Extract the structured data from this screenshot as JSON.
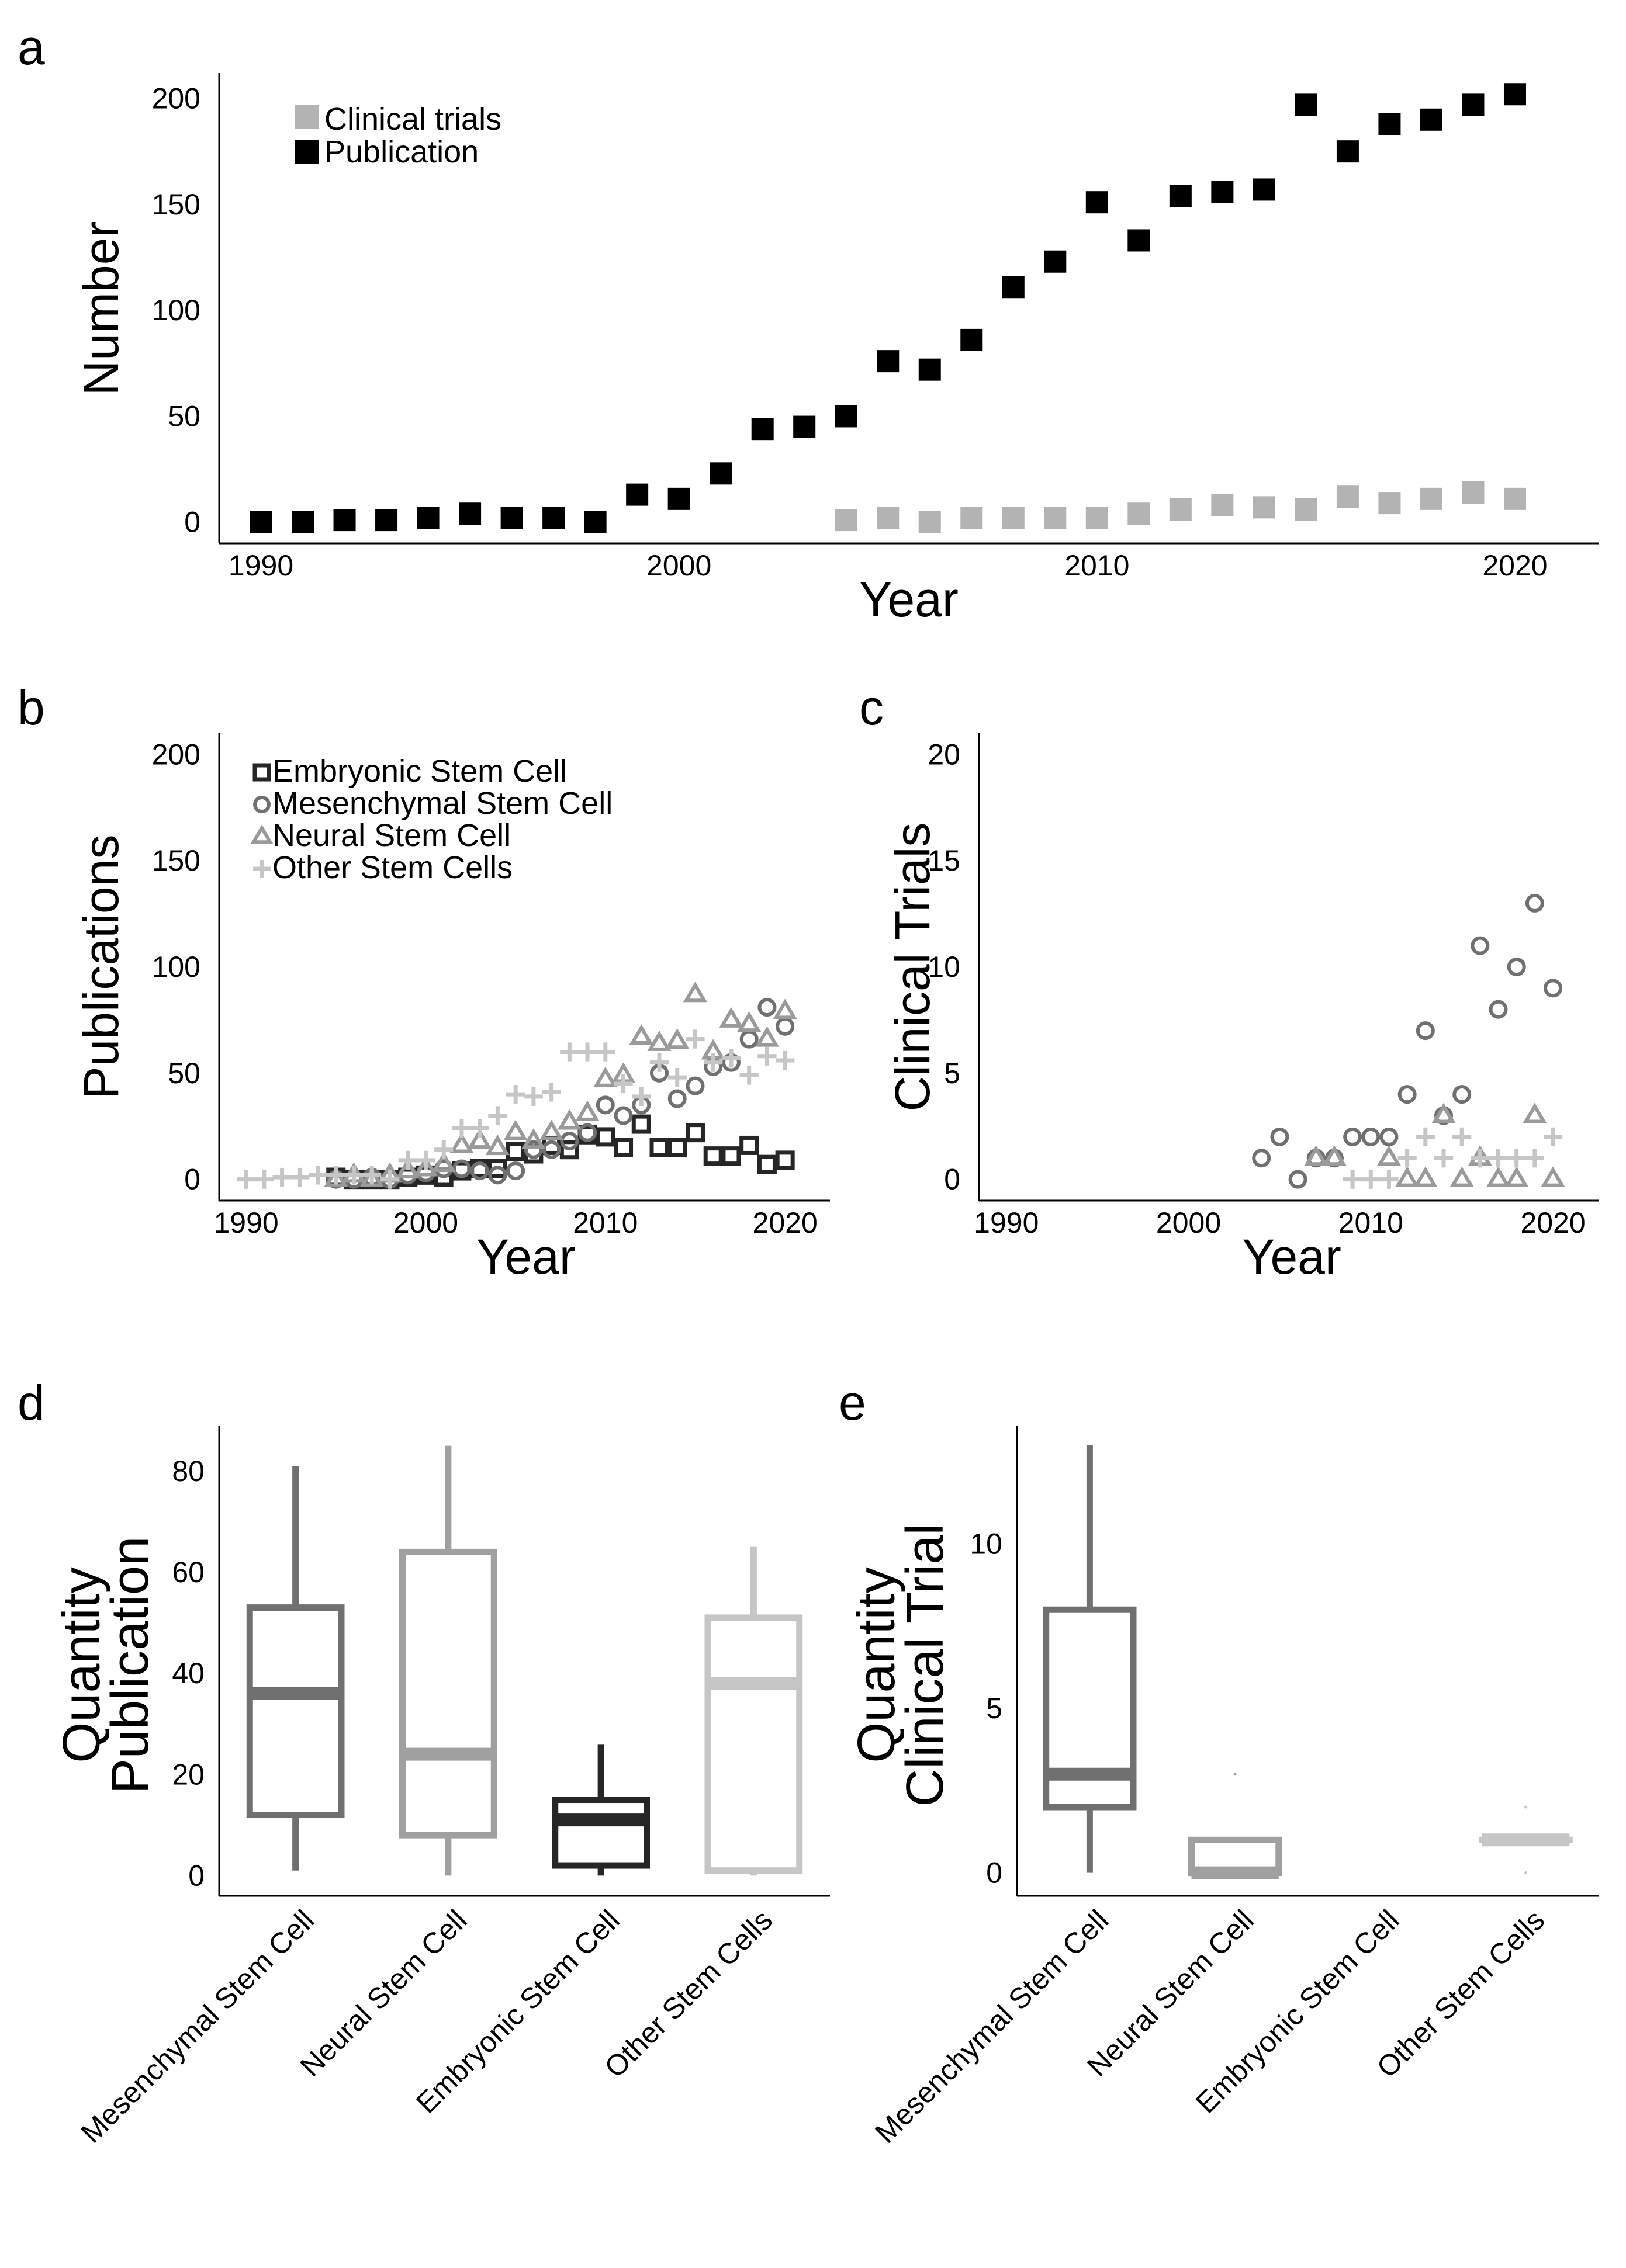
{
  "chart_data": [
    {
      "id": "a",
      "type": "scatter",
      "panel_label": "a",
      "xlabel": "Year",
      "ylabel": "Number",
      "xlim": [
        1989,
        2022
      ],
      "ylim": [
        -10,
        212
      ],
      "x_ticks": [
        1990,
        2000,
        2010,
        2020
      ],
      "y_ticks": [
        0,
        50,
        100,
        150,
        200
      ],
      "legend_position": "top-left",
      "series": [
        {
          "name": "Clinical trials",
          "color": "#b3b3b3",
          "marker": "square",
          "points": [
            [
              2004,
              1
            ],
            [
              2005,
              2
            ],
            [
              2006,
              0
            ],
            [
              2007,
              2
            ],
            [
              2008,
              2
            ],
            [
              2009,
              2
            ],
            [
              2010,
              2
            ],
            [
              2011,
              4
            ],
            [
              2012,
              6
            ],
            [
              2013,
              8
            ],
            [
              2014,
              7
            ],
            [
              2015,
              6
            ],
            [
              2016,
              12
            ],
            [
              2017,
              9
            ],
            [
              2018,
              11
            ],
            [
              2019,
              14
            ],
            [
              2020,
              11
            ]
          ]
        },
        {
          "name": "Publication",
          "color": "#000000",
          "marker": "square",
          "points": [
            [
              1990,
              0
            ],
            [
              1991,
              0
            ],
            [
              1992,
              1
            ],
            [
              1993,
              1
            ],
            [
              1994,
              2
            ],
            [
              1995,
              4
            ],
            [
              1996,
              2
            ],
            [
              1997,
              2
            ],
            [
              1998,
              0
            ],
            [
              1999,
              13
            ],
            [
              2000,
              11
            ],
            [
              2001,
              23
            ],
            [
              2002,
              44
            ],
            [
              2003,
              45
            ],
            [
              2004,
              50
            ],
            [
              2005,
              76
            ],
            [
              2006,
              72
            ],
            [
              2007,
              86
            ],
            [
              2008,
              111
            ],
            [
              2009,
              123
            ],
            [
              2010,
              151
            ],
            [
              2011,
              133
            ],
            [
              2012,
              154
            ],
            [
              2013,
              156
            ],
            [
              2014,
              157
            ],
            [
              2015,
              197
            ],
            [
              2016,
              175
            ],
            [
              2017,
              188
            ],
            [
              2018,
              190
            ],
            [
              2019,
              197
            ],
            [
              2020,
              202
            ]
          ]
        }
      ]
    },
    {
      "id": "b",
      "type": "scatter",
      "panel_label": "b",
      "xlabel": "Year",
      "ylabel": "Publications",
      "xlim": [
        1988.5,
        2022.5
      ],
      "ylim": [
        -10,
        210
      ],
      "x_ticks": [
        1990,
        2000,
        2010,
        2020
      ],
      "y_ticks": [
        0,
        50,
        100,
        150,
        200
      ],
      "legend_position": "top-left",
      "series": [
        {
          "name": "Embryonic Stem Cell",
          "color": "#262626",
          "marker": "square-open",
          "points": [
            [
              1995,
              1
            ],
            [
              1996,
              0
            ],
            [
              1997,
              0
            ],
            [
              1998,
              0
            ],
            [
              1999,
              1
            ],
            [
              2000,
              2
            ],
            [
              2001,
              1
            ],
            [
              2002,
              4
            ],
            [
              2003,
              5
            ],
            [
              2004,
              5
            ],
            [
              2005,
              13
            ],
            [
              2006,
              12
            ],
            [
              2007,
              16
            ],
            [
              2008,
              14
            ],
            [
              2009,
              21
            ],
            [
              2010,
              20
            ],
            [
              2011,
              15
            ],
            [
              2012,
              26
            ],
            [
              2013,
              15
            ],
            [
              2014,
              15
            ],
            [
              2015,
              22
            ],
            [
              2016,
              11
            ],
            [
              2017,
              11
            ],
            [
              2018,
              16
            ],
            [
              2019,
              7
            ],
            [
              2020,
              9
            ]
          ]
        },
        {
          "name": "Mesenchymal Stem Cell",
          "color": "#707070",
          "marker": "circle-open",
          "points": [
            [
              1995,
              0
            ],
            [
              1996,
              0
            ],
            [
              1997,
              1
            ],
            [
              1998,
              0
            ],
            [
              1999,
              2
            ],
            [
              2000,
              3
            ],
            [
              2001,
              5
            ],
            [
              2002,
              5
            ],
            [
              2003,
              4
            ],
            [
              2004,
              2
            ],
            [
              2005,
              4
            ],
            [
              2006,
              14
            ],
            [
              2007,
              14
            ],
            [
              2008,
              18
            ],
            [
              2009,
              22
            ],
            [
              2010,
              35
            ],
            [
              2011,
              30
            ],
            [
              2012,
              35
            ],
            [
              2013,
              50
            ],
            [
              2014,
              38
            ],
            [
              2015,
              44
            ],
            [
              2016,
              53
            ],
            [
              2017,
              55
            ],
            [
              2018,
              66
            ],
            [
              2019,
              81
            ],
            [
              2020,
              72
            ]
          ]
        },
        {
          "name": "Neural Stem Cell",
          "color": "#9a9a9a",
          "marker": "triangle-open",
          "points": [
            [
              1995,
              0
            ],
            [
              1996,
              2
            ],
            [
              1997,
              0
            ],
            [
              1998,
              2
            ],
            [
              1999,
              4
            ],
            [
              2000,
              5
            ],
            [
              2001,
              7
            ],
            [
              2002,
              16
            ],
            [
              2003,
              18
            ],
            [
              2004,
              15
            ],
            [
              2005,
              22
            ],
            [
              2006,
              18
            ],
            [
              2007,
              22
            ],
            [
              2008,
              27
            ],
            [
              2009,
              31
            ],
            [
              2010,
              47
            ],
            [
              2011,
              49
            ],
            [
              2012,
              67
            ],
            [
              2013,
              64
            ],
            [
              2014,
              65
            ],
            [
              2015,
              87
            ],
            [
              2016,
              60
            ],
            [
              2017,
              75
            ],
            [
              2018,
              73
            ],
            [
              2019,
              66
            ],
            [
              2020,
              79
            ]
          ]
        },
        {
          "name": "Other Stem Cells",
          "color": "#c6c6c6",
          "marker": "plus",
          "points": [
            [
              1990,
              0
            ],
            [
              1991,
              0
            ],
            [
              1992,
              1
            ],
            [
              1993,
              1
            ],
            [
              1994,
              2
            ],
            [
              1995,
              2
            ],
            [
              1996,
              2
            ],
            [
              1997,
              2
            ],
            [
              1998,
              0
            ],
            [
              1999,
              9
            ],
            [
              2000,
              9
            ],
            [
              2001,
              14
            ],
            [
              2002,
              24
            ],
            [
              2003,
              24
            ],
            [
              2004,
              30
            ],
            [
              2005,
              40
            ],
            [
              2006,
              39
            ],
            [
              2007,
              41
            ],
            [
              2008,
              60
            ],
            [
              2009,
              60
            ],
            [
              2010,
              60
            ],
            [
              2011,
              45
            ],
            [
              2012,
              39
            ],
            [
              2013,
              55
            ],
            [
              2014,
              48
            ],
            [
              2015,
              66
            ],
            [
              2016,
              55
            ],
            [
              2017,
              57
            ],
            [
              2018,
              49
            ],
            [
              2019,
              58
            ],
            [
              2020,
              56
            ]
          ]
        }
      ]
    },
    {
      "id": "c",
      "type": "scatter",
      "panel_label": "c",
      "xlabel": "Year",
      "ylabel": "Clinical Trials",
      "xlim": [
        1988.5,
        2022.5
      ],
      "ylim": [
        -1,
        21
      ],
      "x_ticks": [
        1990,
        2000,
        2010,
        2020
      ],
      "y_ticks": [
        0,
        5,
        10,
        15,
        20
      ],
      "series": [
        {
          "name": "Mesenchymal Stem Cell",
          "color": "#707070",
          "marker": "circle-open",
          "points": [
            [
              2004,
              1
            ],
            [
              2005,
              2
            ],
            [
              2006,
              0
            ],
            [
              2007,
              1
            ],
            [
              2008,
              1
            ],
            [
              2009,
              2
            ],
            [
              2010,
              2
            ],
            [
              2011,
              2
            ],
            [
              2012,
              4
            ],
            [
              2013,
              7
            ],
            [
              2014,
              3
            ],
            [
              2015,
              4
            ],
            [
              2016,
              11
            ],
            [
              2017,
              8
            ],
            [
              2018,
              10
            ],
            [
              2019,
              13
            ],
            [
              2020,
              9
            ]
          ]
        },
        {
          "name": "Neural Stem Cell",
          "color": "#9a9a9a",
          "marker": "triangle-open",
          "points": [
            [
              2007,
              1
            ],
            [
              2008,
              1
            ],
            [
              2011,
              1
            ],
            [
              2012,
              0
            ],
            [
              2013,
              0
            ],
            [
              2014,
              3
            ],
            [
              2015,
              0
            ],
            [
              2016,
              1
            ],
            [
              2017,
              0
            ],
            [
              2018,
              0
            ],
            [
              2019,
              3
            ],
            [
              2020,
              0
            ]
          ]
        },
        {
          "name": "Other Stem Cells",
          "color": "#c6c6c6",
          "marker": "plus",
          "points": [
            [
              2009,
              0
            ],
            [
              2010,
              0
            ],
            [
              2011,
              0
            ],
            [
              2012,
              1
            ],
            [
              2013,
              2
            ],
            [
              2014,
              1
            ],
            [
              2015,
              2
            ],
            [
              2016,
              1
            ],
            [
              2017,
              1
            ],
            [
              2018,
              1
            ],
            [
              2019,
              1
            ],
            [
              2020,
              2
            ]
          ]
        }
      ]
    },
    {
      "id": "d",
      "type": "box",
      "panel_label": "d",
      "ylabel_lines": [
        "Quantity",
        "Publication"
      ],
      "ylim": [
        -4,
        89
      ],
      "y_ticks": [
        0,
        20,
        40,
        60,
        80
      ],
      "categories": [
        "Mesenchymal Stem Cell",
        "Neural Stem Cell",
        "Embryonic Stem Cell",
        "Other Stem Cells"
      ],
      "boxes": [
        {
          "category": "Mesenchymal Stem Cell",
          "color": "#707070",
          "min": 1,
          "q1": 12,
          "median": 36,
          "q3": 53,
          "max": 81
        },
        {
          "category": "Neural Stem Cell",
          "color": "#a0a0a0",
          "min": 0,
          "q1": 8,
          "median": 24,
          "q3": 64,
          "max": 85
        },
        {
          "category": "Embryonic Stem Cell",
          "color": "#262626",
          "min": 0,
          "q1": 2,
          "median": 11,
          "q3": 15,
          "max": 26
        },
        {
          "category": "Other Stem Cells",
          "color": "#c6c6c6",
          "min": 0,
          "q1": 1,
          "median": 38,
          "q3": 51,
          "max": 65
        }
      ]
    },
    {
      "id": "e",
      "type": "box",
      "panel_label": "e",
      "ylabel_lines": [
        "Quantity",
        "Clinical Trial"
      ],
      "ylim": [
        -0.7,
        13.6
      ],
      "y_ticks": [
        0,
        5,
        10
      ],
      "categories": [
        "Mesenchymal Stem Cell",
        "Neural Stem Cell",
        "Embryonic Stem Cell",
        "Other Stem Cells"
      ],
      "boxes": [
        {
          "category": "Mesenchymal Stem Cell",
          "color": "#707070",
          "min": 0,
          "q1": 2,
          "median": 3,
          "q3": 8,
          "max": 13
        },
        {
          "category": "Neural Stem Cell",
          "color": "#a0a0a0",
          "min": 0,
          "q1": 0,
          "median": 0,
          "q3": 1,
          "max": 1,
          "outliers": [
            3
          ]
        },
        {
          "category": "Other Stem Cells",
          "color": "#c6c6c6",
          "min": 1,
          "q1": 1,
          "median": 1,
          "q3": 1,
          "max": 1,
          "outliers": [
            2,
            0
          ]
        }
      ]
    }
  ]
}
